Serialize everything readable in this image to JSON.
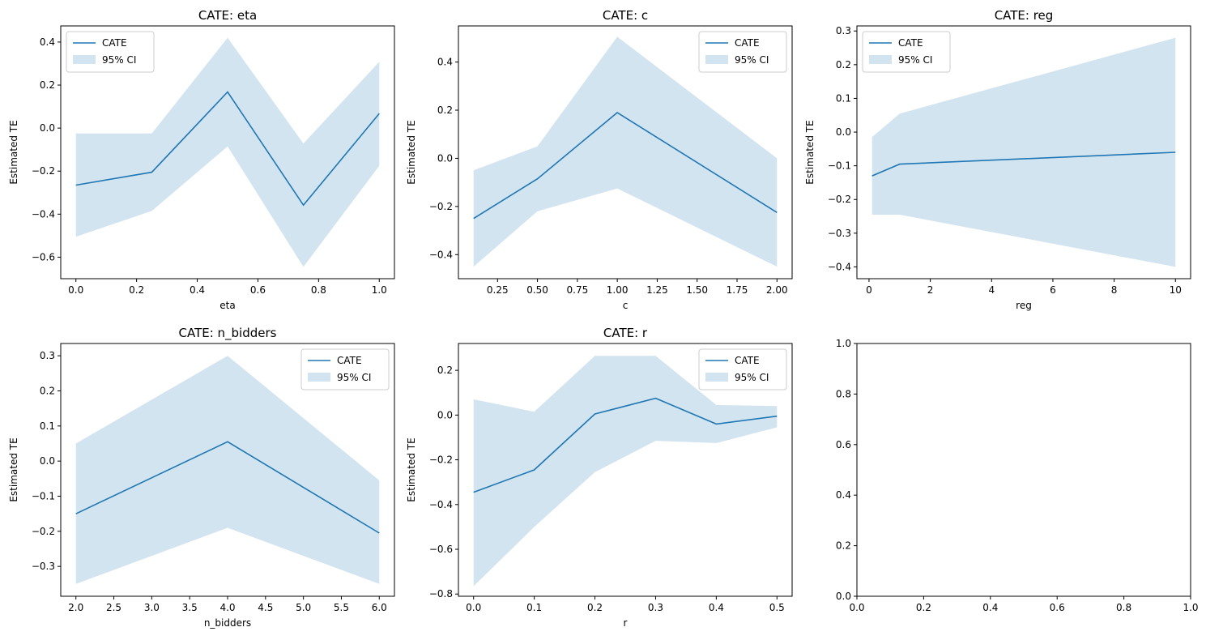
{
  "figure": {
    "line_color": "#1f77b4",
    "band_color": "#1f77b4",
    "band_opacity": 0.2
  },
  "chart_data": [
    {
      "type": "line",
      "title": "CATE: eta",
      "xlabel": "eta",
      "ylabel": "Estimated TE",
      "xlim": [
        -0.05,
        1.05
      ],
      "ylim": [
        -0.7,
        0.475
      ],
      "xticks": [
        0.0,
        0.2,
        0.4,
        0.6,
        0.8,
        1.0
      ],
      "xtick_labels": [
        "0.0",
        "0.2",
        "0.4",
        "0.6",
        "0.8",
        "1.0"
      ],
      "yticks": [
        -0.6,
        -0.4,
        -0.2,
        0.0,
        0.2,
        0.4
      ],
      "ytick_labels": [
        "−0.6",
        "−0.4",
        "−0.2",
        "0.0",
        "0.2",
        "0.4"
      ],
      "legend_position": "upper left",
      "series": [
        {
          "name": "CATE",
          "kind": "line",
          "x": [
            0.0,
            0.25,
            0.5,
            0.75,
            1.0
          ],
          "y": [
            -0.265,
            -0.205,
            0.168,
            -0.358,
            0.068
          ]
        },
        {
          "name": "95% CI",
          "kind": "band",
          "x": [
            0.0,
            0.25,
            0.5,
            0.75,
            1.0
          ],
          "lower": [
            -0.505,
            -0.385,
            -0.085,
            -0.645,
            -0.175
          ],
          "upper": [
            -0.025,
            -0.025,
            0.42,
            -0.072,
            0.308
          ]
        }
      ]
    },
    {
      "type": "line",
      "title": "CATE: c",
      "xlabel": "c",
      "ylabel": "Estimated TE",
      "xlim": [
        0.005,
        2.095
      ],
      "ylim": [
        -0.5,
        0.55
      ],
      "xticks": [
        0.25,
        0.5,
        0.75,
        1.0,
        1.25,
        1.5,
        1.75,
        2.0
      ],
      "xtick_labels": [
        "0.25",
        "0.50",
        "0.75",
        "1.00",
        "1.25",
        "1.50",
        "1.75",
        "2.00"
      ],
      "yticks": [
        -0.4,
        -0.2,
        0.0,
        0.2,
        0.4
      ],
      "ytick_labels": [
        "−0.4",
        "−0.2",
        "0.0",
        "0.2",
        "0.4"
      ],
      "legend_position": "upper right",
      "series": [
        {
          "name": "CATE",
          "kind": "line",
          "x": [
            0.1,
            0.5,
            1.0,
            2.0
          ],
          "y": [
            -0.25,
            -0.085,
            0.19,
            -0.225
          ]
        },
        {
          "name": "95% CI",
          "kind": "band",
          "x": [
            0.1,
            0.5,
            1.0,
            2.0
          ],
          "lower": [
            -0.45,
            -0.22,
            -0.125,
            -0.45
          ],
          "upper": [
            -0.05,
            0.05,
            0.505,
            0.0
          ]
        }
      ]
    },
    {
      "type": "line",
      "title": "CATE: reg",
      "xlabel": "reg",
      "ylabel": "Estimated TE",
      "xlim": [
        -0.395,
        10.495
      ],
      "ylim": [
        -0.435,
        0.315
      ],
      "xticks": [
        0,
        2,
        4,
        6,
        8,
        10
      ],
      "xtick_labels": [
        "0",
        "2",
        "4",
        "6",
        "8",
        "10"
      ],
      "yticks": [
        -0.4,
        -0.3,
        -0.2,
        -0.1,
        0.0,
        0.1,
        0.2,
        0.3
      ],
      "ytick_labels": [
        "−0.4",
        "−0.3",
        "−0.2",
        "−0.1",
        "0.0",
        "0.1",
        "0.2",
        "0.3"
      ],
      "legend_position": "upper left",
      "series": [
        {
          "name": "CATE",
          "kind": "line",
          "x": [
            0.1,
            1.0,
            10.0
          ],
          "y": [
            -0.13,
            -0.095,
            -0.06
          ]
        },
        {
          "name": "95% CI",
          "kind": "band",
          "x": [
            0.1,
            1.0,
            10.0
          ],
          "lower": [
            -0.245,
            -0.245,
            -0.4
          ],
          "upper": [
            -0.015,
            0.055,
            0.28
          ]
        }
      ]
    },
    {
      "type": "line",
      "title": "CATE: n_bidders",
      "xlabel": "n_bidders",
      "ylabel": "Estimated TE",
      "xlim": [
        1.8,
        6.2
      ],
      "ylim": [
        -0.385,
        0.335
      ],
      "xticks": [
        2.0,
        2.5,
        3.0,
        3.5,
        4.0,
        4.5,
        5.0,
        5.5,
        6.0
      ],
      "xtick_labels": [
        "2.0",
        "2.5",
        "3.0",
        "3.5",
        "4.0",
        "4.5",
        "5.0",
        "5.5",
        "6.0"
      ],
      "yticks": [
        -0.3,
        -0.2,
        -0.1,
        0.0,
        0.1,
        0.2,
        0.3
      ],
      "ytick_labels": [
        "−0.3",
        "−0.2",
        "−0.1",
        "0.0",
        "0.1",
        "0.2",
        "0.3"
      ],
      "legend_position": "upper right",
      "series": [
        {
          "name": "CATE",
          "kind": "line",
          "x": [
            2,
            4,
            6
          ],
          "y": [
            -0.15,
            0.055,
            -0.205
          ]
        },
        {
          "name": "95% CI",
          "kind": "band",
          "x": [
            2,
            4,
            6
          ],
          "lower": [
            -0.35,
            -0.19,
            -0.35
          ],
          "upper": [
            0.05,
            0.3,
            -0.055
          ]
        }
      ]
    },
    {
      "type": "line",
      "title": "CATE: r",
      "xlabel": "r",
      "ylabel": "Estimated TE",
      "xlim": [
        -0.025,
        0.525
      ],
      "ylim": [
        -0.81,
        0.32
      ],
      "xticks": [
        0.0,
        0.1,
        0.2,
        0.3,
        0.4,
        0.5
      ],
      "xtick_labels": [
        "0.0",
        "0.1",
        "0.2",
        "0.3",
        "0.4",
        "0.5"
      ],
      "yticks": [
        -0.8,
        -0.6,
        -0.4,
        -0.2,
        0.0,
        0.2
      ],
      "ytick_labels": [
        "−0.8",
        "−0.6",
        "−0.4",
        "−0.2",
        "0.0",
        "0.2"
      ],
      "legend_position": "upper right",
      "series": [
        {
          "name": "CATE",
          "kind": "line",
          "x": [
            0.0,
            0.1,
            0.2,
            0.3,
            0.4,
            0.5
          ],
          "y": [
            -0.345,
            -0.245,
            0.005,
            0.075,
            -0.04,
            -0.005
          ]
        },
        {
          "name": "95% CI",
          "kind": "band",
          "x": [
            0.0,
            0.1,
            0.2,
            0.3,
            0.4,
            0.5
          ],
          "lower": [
            -0.765,
            -0.5,
            -0.255,
            -0.115,
            -0.125,
            -0.055
          ],
          "upper": [
            0.07,
            0.015,
            0.265,
            0.265,
            0.045,
            0.04
          ]
        }
      ]
    },
    {
      "type": "line",
      "title": "",
      "xlabel": "",
      "ylabel": "",
      "xlim": [
        0.0,
        1.0
      ],
      "ylim": [
        0.0,
        1.0
      ],
      "xticks": [
        0.0,
        0.2,
        0.4,
        0.6,
        0.8,
        1.0
      ],
      "xtick_labels": [
        "0.0",
        "0.2",
        "0.4",
        "0.6",
        "0.8",
        "1.0"
      ],
      "yticks": [
        0.0,
        0.2,
        0.4,
        0.6,
        0.8,
        1.0
      ],
      "ytick_labels": [
        "0.0",
        "0.2",
        "0.4",
        "0.6",
        "0.8",
        "1.0"
      ],
      "legend_position": "",
      "series": []
    }
  ]
}
